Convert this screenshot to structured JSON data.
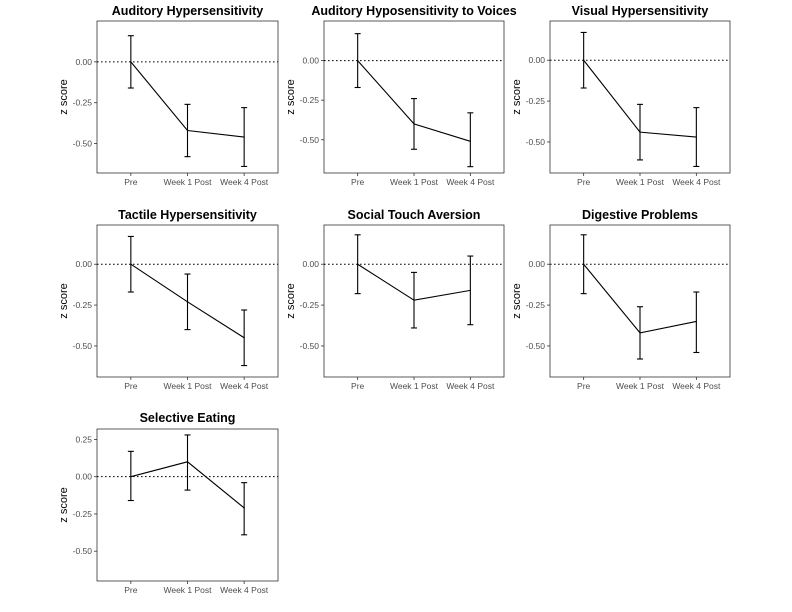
{
  "chart_data": [
    {
      "type": "line",
      "title": "Auditory Hypersensitivity",
      "categories": [
        "Pre",
        "Week 1 Post",
        "Week 4 Post"
      ],
      "values": [
        0.0,
        -0.42,
        -0.46
      ],
      "error": [
        [
          -0.16,
          0.16
        ],
        [
          -0.58,
          -0.26
        ],
        [
          -0.64,
          -0.28
        ]
      ],
      "yticks": [
        "0.00",
        "-0.25",
        "-0.50"
      ],
      "ylim": [
        -0.68,
        0.25
      ],
      "reference_line": 0,
      "xlabel": "",
      "ylabel": "z score"
    },
    {
      "type": "line",
      "title": "Auditory Hyposensitivity to Voices",
      "categories": [
        "Pre",
        "Week 1 Post",
        "Week 4 Post"
      ],
      "values": [
        0.0,
        -0.4,
        -0.51
      ],
      "error": [
        [
          -0.17,
          0.17
        ],
        [
          -0.56,
          -0.24
        ],
        [
          -0.67,
          -0.33
        ]
      ],
      "yticks": [
        "0.00",
        "-0.25",
        "-0.50"
      ],
      "ylim": [
        -0.71,
        0.25
      ],
      "reference_line": 0,
      "xlabel": "",
      "ylabel": "z score"
    },
    {
      "type": "line",
      "title": "Visual Hypersensitivity",
      "categories": [
        "Pre",
        "Week 1 Post",
        "Week 4 Post"
      ],
      "values": [
        0.0,
        -0.44,
        -0.47
      ],
      "error": [
        [
          -0.17,
          0.17
        ],
        [
          -0.61,
          -0.27
        ],
        [
          -0.65,
          -0.29
        ]
      ],
      "yticks": [
        "0.00",
        "-0.25",
        "-0.50"
      ],
      "ylim": [
        -0.69,
        0.24
      ],
      "reference_line": 0,
      "xlabel": "",
      "ylabel": "z score"
    },
    {
      "type": "line",
      "title": "Tactile Hypersensitivity",
      "categories": [
        "Pre",
        "Week 1 Post",
        "Week 4 Post"
      ],
      "values": [
        0.0,
        -0.23,
        -0.45
      ],
      "error": [
        [
          -0.17,
          0.17
        ],
        [
          -0.4,
          -0.06
        ],
        [
          -0.62,
          -0.28
        ]
      ],
      "yticks": [
        "0.00",
        "-0.25",
        "-0.50"
      ],
      "ylim": [
        -0.69,
        0.24
      ],
      "reference_line": 0,
      "xlabel": "",
      "ylabel": "z score"
    },
    {
      "type": "line",
      "title": "Social Touch Aversion",
      "categories": [
        "Pre",
        "Week 1 Post",
        "Week 4 Post"
      ],
      "values": [
        0.0,
        -0.22,
        -0.16
      ],
      "error": [
        [
          -0.18,
          0.18
        ],
        [
          -0.39,
          -0.05
        ],
        [
          -0.37,
          0.05
        ]
      ],
      "yticks": [
        "0.00",
        "-0.25",
        "-0.50"
      ],
      "ylim": [
        -0.69,
        0.24
      ],
      "reference_line": 0,
      "xlabel": "",
      "ylabel": "z score"
    },
    {
      "type": "line",
      "title": "Digestive Problems",
      "categories": [
        "Pre",
        "Week 1 Post",
        "Week 4 Post"
      ],
      "values": [
        0.0,
        -0.42,
        -0.35
      ],
      "error": [
        [
          -0.18,
          0.18
        ],
        [
          -0.58,
          -0.26
        ],
        [
          -0.54,
          -0.17
        ]
      ],
      "yticks": [
        "0.00",
        "-0.25",
        "-0.50"
      ],
      "ylim": [
        -0.69,
        0.24
      ],
      "reference_line": 0,
      "xlabel": "",
      "ylabel": "z score"
    },
    {
      "type": "line",
      "title": "Selective Eating",
      "categories": [
        "Pre",
        "Week 1 Post",
        "Week 4 Post"
      ],
      "values": [
        0.0,
        0.1,
        -0.21
      ],
      "error": [
        [
          -0.16,
          0.17
        ],
        [
          -0.09,
          0.28
        ],
        [
          -0.39,
          -0.04
        ]
      ],
      "yticks": [
        "0.25",
        "0.00",
        "-0.25",
        "-0.50"
      ],
      "ylim": [
        -0.7,
        0.32
      ],
      "reference_line": 0,
      "xlabel": "",
      "ylabel": "z score"
    }
  ]
}
